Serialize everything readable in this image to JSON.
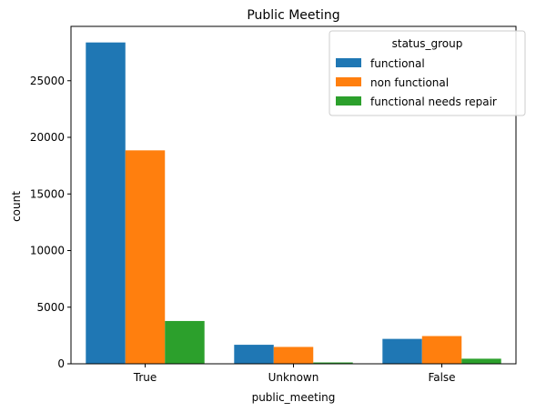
{
  "chart_data": {
    "type": "bar",
    "title": "Public Meeting",
    "xlabel": "public_meeting",
    "ylabel": "count",
    "categories": [
      "True",
      "Unknown",
      "False"
    ],
    "series": [
      {
        "name": "functional",
        "values": [
          28380,
          1680,
          2200
        ],
        "color": "#1f77b4"
      },
      {
        "name": "non functional",
        "values": [
          18850,
          1490,
          2450
        ],
        "color": "#ff7f0e"
      },
      {
        "name": "functional needs repair",
        "values": [
          3780,
          120,
          450
        ],
        "color": "#2ca02c"
      }
    ],
    "ylim": [
      0,
      29800
    ],
    "yticks": [
      0,
      5000,
      10000,
      15000,
      20000,
      25000
    ],
    "legend": {
      "title": "status_group",
      "position": "top-right"
    },
    "grid": false
  }
}
